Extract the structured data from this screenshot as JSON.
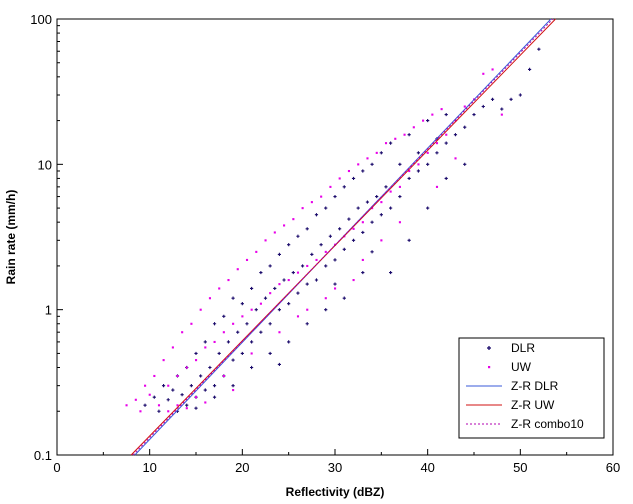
{
  "chart_data": {
    "type": "scatter",
    "xlabel": "Reflectivity (dBZ)",
    "ylabel": "Rain rate (mm/h)",
    "xlim": [
      0,
      60
    ],
    "ylim": [
      0.1,
      100
    ],
    "y_scale": "log",
    "grid": false,
    "legend_position": "bottom-right",
    "x_ticks": [
      "0",
      "10",
      "20",
      "30",
      "40",
      "50",
      "60"
    ],
    "y_ticks": [
      "0.1",
      "1",
      "10",
      "100"
    ],
    "series": [
      {
        "name": "DLR",
        "kind": "points",
        "color": "#1a0a6b",
        "marker": "plus",
        "points": [
          [
            9.5,
            0.22
          ],
          [
            10.5,
            0.25
          ],
          [
            11,
            0.2
          ],
          [
            11.5,
            0.3
          ],
          [
            12,
            0.24
          ],
          [
            12.5,
            0.28
          ],
          [
            13,
            0.2
          ],
          [
            13,
            0.35
          ],
          [
            13.5,
            0.26
          ],
          [
            14,
            0.22
          ],
          [
            14,
            0.4
          ],
          [
            14.5,
            0.3
          ],
          [
            15,
            0.25
          ],
          [
            15,
            0.5
          ],
          [
            15.5,
            0.35
          ],
          [
            16,
            0.28
          ],
          [
            16,
            0.6
          ],
          [
            16.5,
            0.4
          ],
          [
            17,
            0.3
          ],
          [
            17,
            0.8
          ],
          [
            17.5,
            0.5
          ],
          [
            18,
            0.35
          ],
          [
            18,
            0.9
          ],
          [
            18.5,
            0.6
          ],
          [
            19,
            0.45
          ],
          [
            19,
            1.2
          ],
          [
            19.5,
            0.7
          ],
          [
            20,
            0.5
          ],
          [
            20,
            1.1
          ],
          [
            20.5,
            0.8
          ],
          [
            21,
            0.6
          ],
          [
            21,
            1.4
          ],
          [
            21.5,
            1
          ],
          [
            22,
            0.7
          ],
          [
            22,
            1.8
          ],
          [
            22.5,
            1.2
          ],
          [
            23,
            0.8
          ],
          [
            23,
            2
          ],
          [
            23.5,
            1.4
          ],
          [
            24,
            1
          ],
          [
            24,
            2.4
          ],
          [
            24.5,
            1.6
          ],
          [
            25,
            1.1
          ],
          [
            25,
            2.8
          ],
          [
            25.5,
            1.8
          ],
          [
            26,
            1.3
          ],
          [
            26,
            3.2
          ],
          [
            26.5,
            2
          ],
          [
            27,
            1.5
          ],
          [
            27,
            3.6
          ],
          [
            27.5,
            2.4
          ],
          [
            28,
            1.6
          ],
          [
            28,
            4.5
          ],
          [
            28.5,
            2.8
          ],
          [
            29,
            2
          ],
          [
            29,
            5
          ],
          [
            29.5,
            3.2
          ],
          [
            30,
            2.2
          ],
          [
            30,
            6
          ],
          [
            30.5,
            3.6
          ],
          [
            31,
            2.6
          ],
          [
            31,
            7
          ],
          [
            31.5,
            4.2
          ],
          [
            32,
            3
          ],
          [
            32,
            8
          ],
          [
            32.5,
            5
          ],
          [
            33,
            3.4
          ],
          [
            33,
            9
          ],
          [
            33.5,
            5.5
          ],
          [
            34,
            4
          ],
          [
            34,
            10
          ],
          [
            34.5,
            6
          ],
          [
            35,
            4.5
          ],
          [
            35,
            12
          ],
          [
            35.5,
            7
          ],
          [
            36,
            5
          ],
          [
            36,
            14
          ],
          [
            37,
            6
          ],
          [
            37,
            10
          ],
          [
            38,
            8
          ],
          [
            38,
            16
          ],
          [
            39,
            9
          ],
          [
            39,
            12
          ],
          [
            40,
            10
          ],
          [
            40,
            20
          ],
          [
            41,
            12
          ],
          [
            41,
            15
          ],
          [
            42,
            14
          ],
          [
            42,
            22
          ],
          [
            43,
            16
          ],
          [
            44,
            18
          ],
          [
            45,
            22
          ],
          [
            46,
            25
          ],
          [
            47,
            28
          ],
          [
            48,
            24
          ],
          [
            49,
            28
          ],
          [
            50,
            30
          ],
          [
            51,
            45
          ],
          [
            52,
            62
          ],
          [
            36,
            1.8
          ],
          [
            38,
            3
          ],
          [
            40,
            5
          ],
          [
            33,
            1.8
          ],
          [
            31,
            1.2
          ],
          [
            29,
            1
          ],
          [
            27,
            0.8
          ],
          [
            25,
            0.6
          ],
          [
            23,
            0.5
          ],
          [
            21,
            0.4
          ],
          [
            19,
            0.3
          ],
          [
            17,
            0.25
          ],
          [
            15,
            0.21
          ],
          [
            24,
            0.42
          ],
          [
            30,
            1.5
          ],
          [
            34,
            2.5
          ],
          [
            42,
            8
          ],
          [
            44,
            10
          ]
        ]
      },
      {
        "name": "UW",
        "kind": "points",
        "color": "#e800e8",
        "marker": "dot",
        "points": [
          [
            7.5,
            0.22
          ],
          [
            8.5,
            0.24
          ],
          [
            9,
            0.2
          ],
          [
            9.5,
            0.3
          ],
          [
            10,
            0.26
          ],
          [
            10.5,
            0.35
          ],
          [
            11,
            0.22
          ],
          [
            11.5,
            0.45
          ],
          [
            12,
            0.3
          ],
          [
            12.5,
            0.55
          ],
          [
            13,
            0.35
          ],
          [
            13.5,
            0.7
          ],
          [
            14,
            0.4
          ],
          [
            14.5,
            0.8
          ],
          [
            15,
            0.45
          ],
          [
            15.5,
            1
          ],
          [
            16,
            0.55
          ],
          [
            16.5,
            1.2
          ],
          [
            17,
            0.6
          ],
          [
            17.5,
            1.4
          ],
          [
            18,
            0.7
          ],
          [
            18.5,
            1.6
          ],
          [
            19,
            0.8
          ],
          [
            19.5,
            1.9
          ],
          [
            20,
            0.9
          ],
          [
            20.5,
            2.2
          ],
          [
            21,
            1
          ],
          [
            21.5,
            2.5
          ],
          [
            22,
            1.1
          ],
          [
            22.5,
            3
          ],
          [
            23,
            1.3
          ],
          [
            23.5,
            3.4
          ],
          [
            24,
            1.5
          ],
          [
            24.5,
            3.8
          ],
          [
            25,
            1.6
          ],
          [
            25.5,
            4.2
          ],
          [
            26,
            1.8
          ],
          [
            26.5,
            5
          ],
          [
            27,
            2
          ],
          [
            27.5,
            5.5
          ],
          [
            28,
            2.2
          ],
          [
            28.5,
            6
          ],
          [
            29,
            2.5
          ],
          [
            29.5,
            7
          ],
          [
            30,
            2.8
          ],
          [
            30.5,
            8
          ],
          [
            31,
            3.2
          ],
          [
            31.5,
            9
          ],
          [
            32,
            3.6
          ],
          [
            32.5,
            10
          ],
          [
            33,
            4
          ],
          [
            33.5,
            11
          ],
          [
            34,
            5
          ],
          [
            34.5,
            12
          ],
          [
            35,
            5.5
          ],
          [
            35.5,
            14
          ],
          [
            36,
            6.5
          ],
          [
            36.5,
            15
          ],
          [
            37,
            7
          ],
          [
            37.5,
            16
          ],
          [
            38,
            9
          ],
          [
            38.5,
            18
          ],
          [
            39,
            10
          ],
          [
            39.5,
            20
          ],
          [
            40,
            12
          ],
          [
            40.5,
            22
          ],
          [
            41,
            14
          ],
          [
            41.5,
            24
          ],
          [
            42,
            16
          ],
          [
            43,
            20
          ],
          [
            44,
            25
          ],
          [
            45,
            28
          ],
          [
            46,
            42
          ],
          [
            47,
            45
          ],
          [
            48,
            22
          ],
          [
            35,
            3
          ],
          [
            33,
            2.2
          ],
          [
            30,
            1.4
          ],
          [
            27,
            1
          ],
          [
            24,
            0.7
          ],
          [
            21,
            0.5
          ],
          [
            18,
            0.35
          ],
          [
            15,
            0.25
          ],
          [
            13,
            0.22
          ],
          [
            26,
            0.9
          ],
          [
            29,
            1.2
          ],
          [
            32,
            1.6
          ],
          [
            37,
            4
          ],
          [
            41,
            7
          ],
          [
            43,
            11
          ],
          [
            12,
            0.2
          ],
          [
            14,
            0.21
          ],
          [
            16,
            0.23
          ],
          [
            19,
            0.28
          ]
        ]
      },
      {
        "name": "Z-R DLR",
        "kind": "line",
        "color": "#3a5ad8",
        "x": [
          8.4,
          53.3
        ],
        "y": [
          0.1,
          100
        ]
      },
      {
        "name": "Z-R UW",
        "kind": "line",
        "color": "#d01010",
        "x": [
          8.0,
          53.8
        ],
        "y": [
          0.1,
          100
        ]
      },
      {
        "name": "Z-R combo10",
        "kind": "dashed-line",
        "color": "#b000b0",
        "x": [
          8.2,
          53.5
        ],
        "y": [
          0.1,
          100
        ]
      }
    ]
  }
}
